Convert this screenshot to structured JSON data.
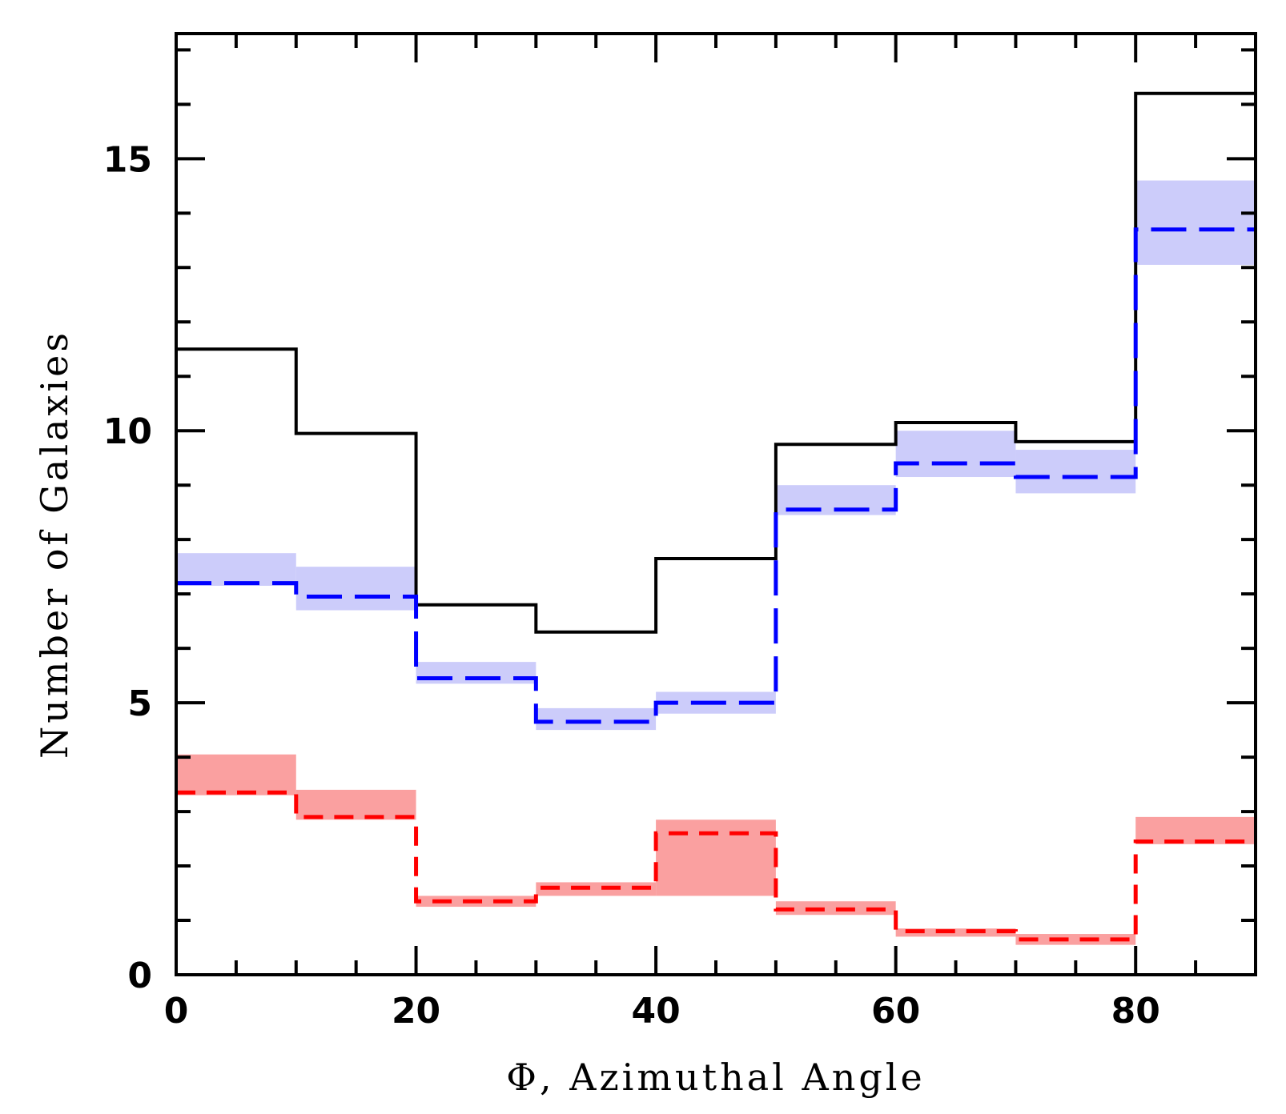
{
  "chart_data": {
    "type": "histogram",
    "title": "",
    "xlabel": "Φ, Azimuthal Angle",
    "ylabel": "Number of Galaxies",
    "xlim": [
      0,
      90
    ],
    "ylim": [
      0,
      17.3
    ],
    "bin_edges": [
      0,
      10,
      20,
      30,
      40,
      50,
      60,
      70,
      80,
      90
    ],
    "x_major_ticks": [
      0,
      20,
      40,
      60,
      80
    ],
    "x_minor_step": 5,
    "y_major_ticks": [
      0,
      5,
      10,
      15
    ],
    "y_minor_step": 1,
    "x_tick_labels": [
      "0",
      "20",
      "40",
      "60",
      "80"
    ],
    "y_tick_labels": [
      "0",
      "5",
      "10",
      "15"
    ],
    "grid": false,
    "legend": "none",
    "series": [
      {
        "style": "solid",
        "color": "#000000",
        "values": [
          11.5,
          9.95,
          6.8,
          6.3,
          7.65,
          9.75,
          10.15,
          9.8,
          16.2
        ]
      },
      {
        "style": "long-dash",
        "color": "#0000ff",
        "band_color": "#ccccfa",
        "values": [
          7.2,
          6.95,
          5.45,
          4.65,
          5.0,
          8.55,
          9.4,
          9.15,
          13.7
        ],
        "band_low": [
          7.15,
          6.7,
          5.35,
          4.5,
          4.8,
          8.45,
          9.15,
          8.85,
          13.05
        ],
        "band_high": [
          7.75,
          7.5,
          5.75,
          4.9,
          5.2,
          9.0,
          10.0,
          9.65,
          14.6
        ]
      },
      {
        "style": "short-dash",
        "color": "#ff0000",
        "band_color": "#faa0a0",
        "values": [
          3.35,
          2.9,
          1.35,
          1.6,
          2.6,
          1.2,
          0.8,
          0.65,
          2.45
        ],
        "band_low": [
          3.3,
          2.85,
          1.25,
          1.45,
          1.45,
          1.1,
          0.7,
          0.55,
          2.4
        ],
        "band_high": [
          4.05,
          3.4,
          1.45,
          1.7,
          2.85,
          1.35,
          0.85,
          0.75,
          2.9
        ]
      }
    ]
  }
}
